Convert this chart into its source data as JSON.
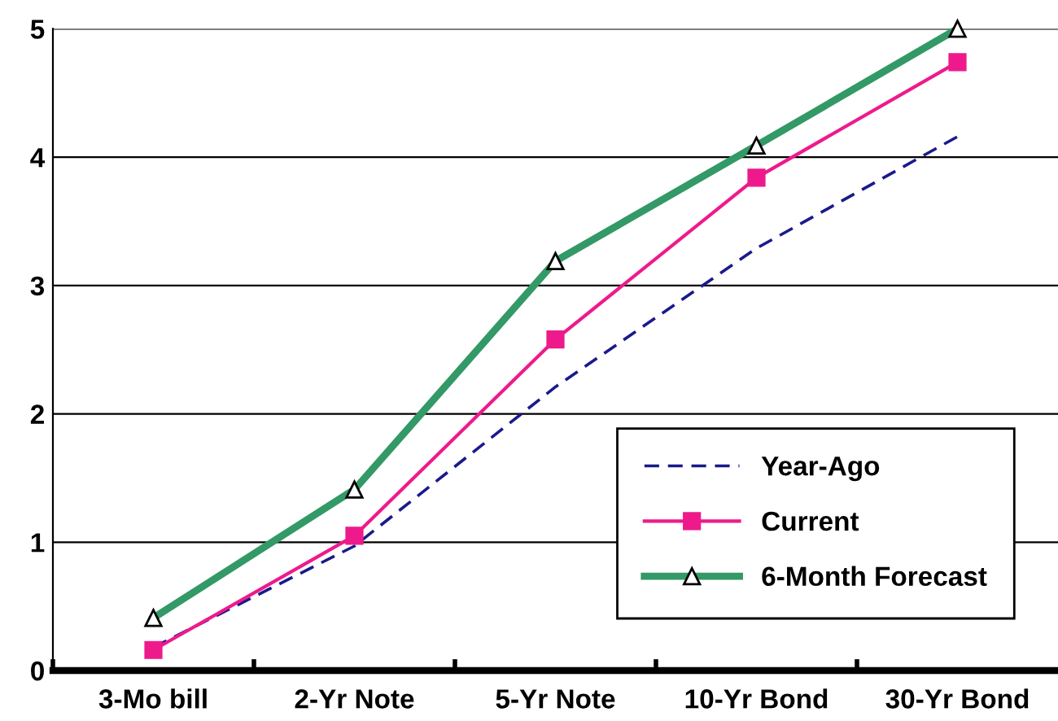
{
  "chart_data": {
    "type": "line",
    "categories": [
      "3-Mo bill",
      "2-Yr Note",
      "5-Yr Note",
      "10-Yr Bond",
      "30-Yr Bond"
    ],
    "series": [
      {
        "name": "Year-Ago",
        "color": "#1a1a8c",
        "values": [
          0.18,
          0.97,
          2.21,
          3.29,
          4.16
        ],
        "line_style": "dashed",
        "marker": "none"
      },
      {
        "name": "Current",
        "color": "#ee1a8c",
        "values": [
          0.16,
          1.05,
          2.58,
          3.84,
          4.74
        ],
        "line_style": "solid",
        "marker": "square"
      },
      {
        "name": "6-Month Forecast",
        "color": "#339966",
        "values": [
          0.41,
          1.41,
          3.19,
          4.09,
          5.0
        ],
        "line_style": "solid",
        "marker": "triangle"
      }
    ],
    "ylim": [
      0,
      5
    ],
    "yticks": [
      0,
      1,
      2,
      3,
      4,
      5
    ],
    "grid": "y",
    "legend": "bottom right"
  }
}
